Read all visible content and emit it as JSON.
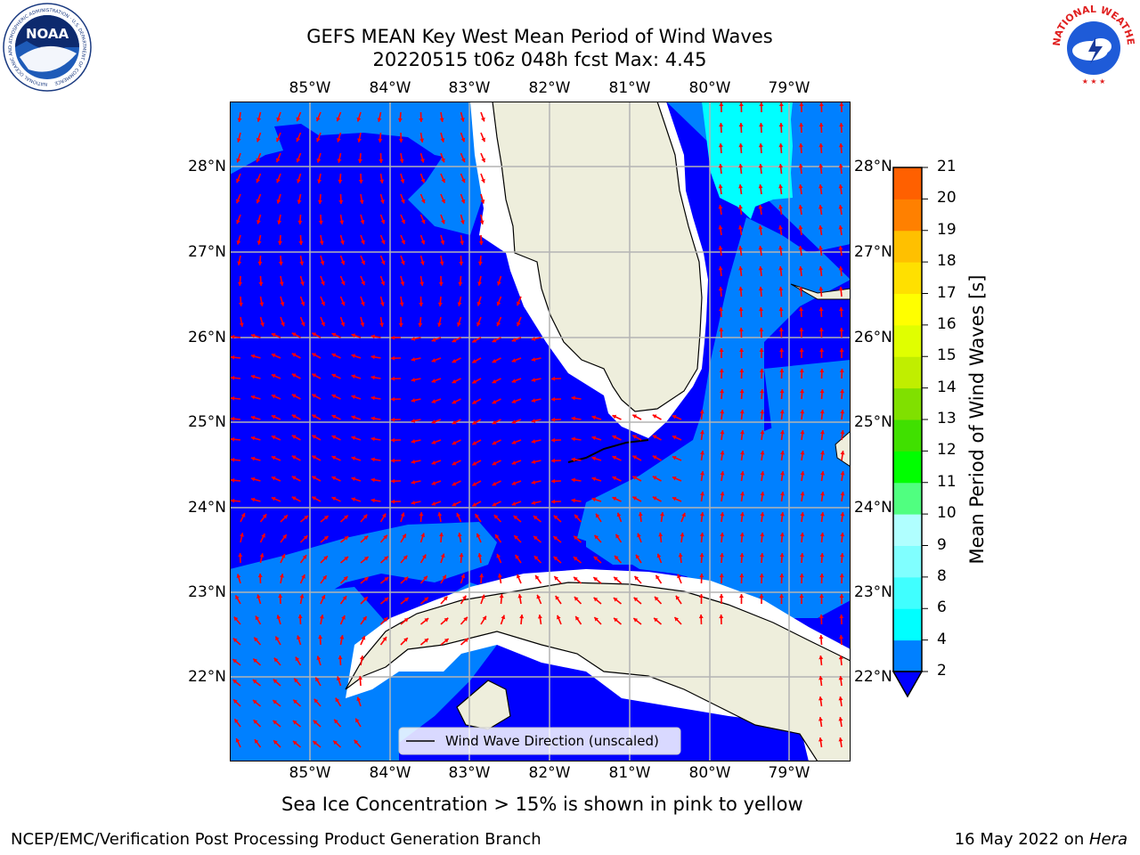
{
  "header": {
    "title_line1": "GEFS MEAN Key West Mean Period of Wind Waves",
    "title_line2": "20220515 t06z 048h fcst   Max: 4.45"
  },
  "logos": {
    "left": "NOAA",
    "left_ring": "NATIONAL OCEANIC AND ATMOSPHERIC ADMINISTRATION · U.S. DEPARTMENT OF COMMERCE",
    "right_ring": "NATIONAL WEATHER SERVICE"
  },
  "map": {
    "lon_labels": [
      "85°W",
      "84°W",
      "83°W",
      "82°W",
      "81°W",
      "80°W",
      "79°W"
    ],
    "lat_labels": [
      "28°N",
      "27°N",
      "26°N",
      "25°N",
      "24°N",
      "23°N",
      "22°N"
    ],
    "legend_label": "Wind Wave Direction (unscaled)",
    "colors": {
      "land": "#eeeedc",
      "blue_dark": "#0000ff",
      "blue_mid": "#0080ff",
      "cyan": "#00ffff",
      "arrow": "#ff0000",
      "grid": "#b4b4b4"
    }
  },
  "colorbar": {
    "label": "Mean Period of Wind Waves [s]",
    "ticks": [
      "2",
      "4",
      "6",
      "8",
      "9",
      "10",
      "11",
      "12",
      "13",
      "14",
      "15",
      "16",
      "17",
      "18",
      "19",
      "20",
      "21"
    ],
    "colors": [
      "#0080ff",
      "#00ffff",
      "#40ffff",
      "#80ffff",
      "#b0ffff",
      "#50ff80",
      "#00ff00",
      "#40e000",
      "#80e000",
      "#c0ee00",
      "#e0ff00",
      "#ffff00",
      "#ffe000",
      "#ffc000",
      "#ff8000",
      "#ff6000",
      "#ff3000",
      "#ff0000"
    ]
  },
  "footer": {
    "note": "Sea Ice Concentration > 15% is shown in pink to yellow",
    "left": "NCEP/EMC/Verification Post Processing Product Generation Branch",
    "right_prefix": "16 May 2022 on ",
    "right_host": "Hera"
  }
}
